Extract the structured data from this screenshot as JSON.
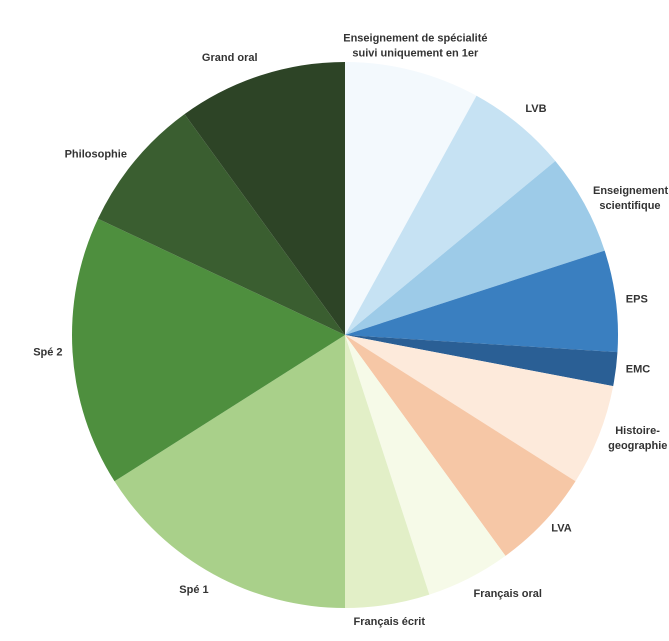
{
  "chart_data": {
    "type": "pie",
    "categories": [
      "Enseignement de spécialité suivi uniquement en 1er",
      "LVB",
      "Enseignement scientifique",
      "EPS",
      "EMC",
      "Histoire-geographie",
      "LVA",
      "Français oral",
      "Français écrit",
      "Spé 1",
      "Spé 2",
      "Philosophie",
      "Grand oral"
    ],
    "values": [
      8,
      6,
      6,
      6,
      2,
      6,
      6,
      5,
      5,
      16,
      16,
      8,
      10
    ],
    "colors": [
      "#f3f9fd",
      "#c6e2f3",
      "#9dcbe8",
      "#3a7fc0",
      "#2a5f95",
      "#fdeadb",
      "#f6c7a6",
      "#f6fae8",
      "#e2efc7",
      "#a9d08a",
      "#4e8f3e",
      "#3a5e30",
      "#2d4426"
    ]
  }
}
